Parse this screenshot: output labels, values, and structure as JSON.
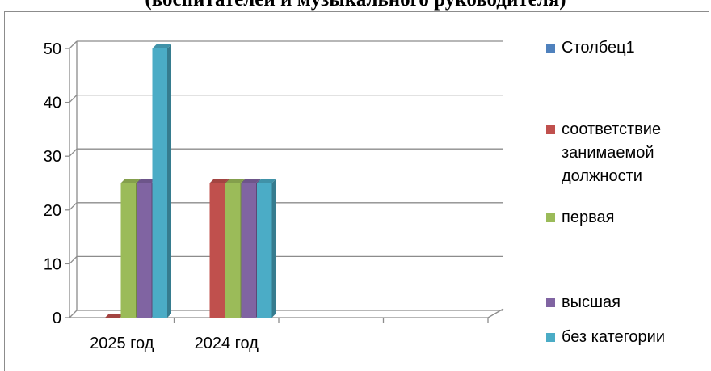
{
  "chart_data": {
    "type": "bar",
    "title": "(воспитателей и музыкального руководителя)",
    "categories": [
      "2025 год",
      "2024 год",
      "",
      ""
    ],
    "ylim": [
      0,
      50
    ],
    "yticks": [
      0,
      10,
      20,
      30,
      40,
      50
    ],
    "grid": true,
    "legend_position": "right",
    "series": [
      {
        "name": "Столбец1",
        "color": "#4f81bd",
        "values": [
          null,
          null,
          null,
          null
        ]
      },
      {
        "name": "соответствие занимаемой должности",
        "color": "#c0504d",
        "values": [
          0,
          25,
          null,
          null
        ]
      },
      {
        "name": "первая",
        "color": "#9bbb59",
        "values": [
          25,
          25,
          null,
          null
        ]
      },
      {
        "name": "высшая",
        "color": "#8064a2",
        "values": [
          25,
          25,
          null,
          null
        ]
      },
      {
        "name": "без категории",
        "color": "#4bacc6",
        "values": [
          50,
          25,
          null,
          null
        ]
      }
    ]
  }
}
